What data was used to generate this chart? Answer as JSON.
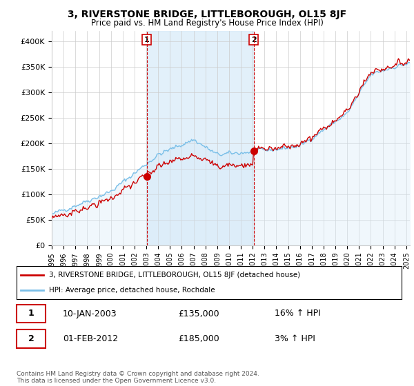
{
  "title": "3, RIVERSTONE BRIDGE, LITTLEBOROUGH, OL15 8JF",
  "subtitle": "Price paid vs. HM Land Registry's House Price Index (HPI)",
  "ylim": [
    0,
    420000
  ],
  "yticks": [
    0,
    50000,
    100000,
    150000,
    200000,
    250000,
    300000,
    350000,
    400000
  ],
  "ytick_labels": [
    "£0",
    "£50K",
    "£100K",
    "£150K",
    "£200K",
    "£250K",
    "£300K",
    "£350K",
    "£400K"
  ],
  "year_start": 1995,
  "year_end": 2025,
  "sale1_year": 2003.03,
  "sale1_price": 135000,
  "sale1_label": "1",
  "sale2_year": 2012.08,
  "sale2_price": 185000,
  "sale2_label": "2",
  "hpi_color": "#7abfe8",
  "hpi_fill_color": "#d6eaf8",
  "sold_color": "#cc0000",
  "annotation_box_color": "#cc0000",
  "grid_color": "#cccccc",
  "bg_color": "#ffffff",
  "plot_bg_color": "#ffffff",
  "legend_entry1": "3, RIVERSTONE BRIDGE, LITTLEBOROUGH, OL15 8JF (detached house)",
  "legend_entry2": "HPI: Average price, detached house, Rochdale",
  "table_row1_num": "1",
  "table_row1_date": "10-JAN-2003",
  "table_row1_price": "£135,000",
  "table_row1_hpi": "16% ↑ HPI",
  "table_row2_num": "2",
  "table_row2_date": "01-FEB-2012",
  "table_row2_price": "£185,000",
  "table_row2_hpi": "3% ↑ HPI",
  "footer": "Contains HM Land Registry data © Crown copyright and database right 2024.\nThis data is licensed under the Open Government Licence v3.0."
}
